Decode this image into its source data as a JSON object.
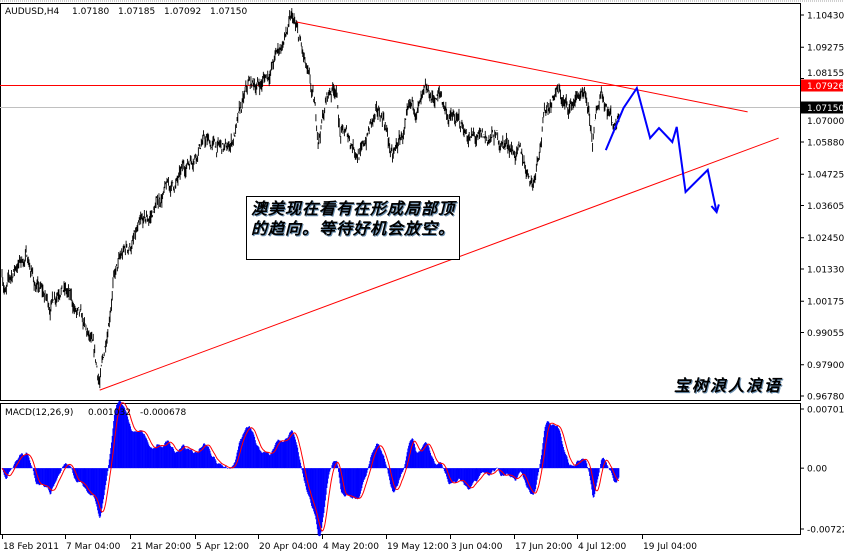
{
  "header": {
    "symbol": "AUDUSD,H4",
    "open": "1.07180",
    "high": "1.07185",
    "low": "1.07092",
    "close": "1.07150"
  },
  "annotation": {
    "text": "澳美现在看有在形成局部顶的趋向。等待好机会放空。"
  },
  "watermark": "宝树浪人浪语",
  "colors": {
    "price": "#000000",
    "trendline": "#ff0000",
    "projection": "#0000ff",
    "histogram": "#0000ff",
    "signal": "#ff0000",
    "current_price": "#c0c0c0"
  },
  "chart_data": [
    {
      "type": "line",
      "title": "AUDUSD,H4",
      "ylim": [
        0.9678,
        1.1043
      ],
      "y_ticks": [
        "1.10430",
        "1.09275",
        "1.08155",
        "1.07000",
        "1.05880",
        "1.04725",
        "1.03605",
        "1.02450",
        "1.01330",
        "1.00175",
        "0.99055",
        "0.97900",
        "0.96780"
      ],
      "x_ticks": [
        {
          "label": "18 Feb 2011",
          "date": "2011-02-18T00:00"
        },
        {
          "label": "7 Mar 04:00",
          "date": "2011-03-07T04:00"
        },
        {
          "label": "21 Mar 20:00",
          "date": "2011-03-21T20:00"
        },
        {
          "label": "5 Apr 12:00",
          "date": "2011-04-05T12:00"
        },
        {
          "label": "20 Apr 04:00",
          "date": "2011-04-20T04:00"
        },
        {
          "label": "4 May 20:00",
          "date": "2011-05-04T20:00"
        },
        {
          "label": "19 May 12:00",
          "date": "2011-05-19T12:00"
        },
        {
          "label": "3 Jun 04:00",
          "date": "2011-06-03T04:00"
        },
        {
          "label": "17 Jun 20:00",
          "date": "2011-06-17T20:00"
        },
        {
          "label": "4 Jul 12:00",
          "date": "2011-07-04T12:00"
        },
        {
          "label": "19 Jul 04:00",
          "date": "2011-07-19T04:00"
        }
      ],
      "price_path": [
        [
          "2011-02-18",
          1.013
        ],
        [
          "2011-02-19",
          1.005
        ],
        [
          "2011-02-22",
          1.015
        ],
        [
          "2011-02-25",
          1.018
        ],
        [
          "2011-02-27",
          1.008
        ],
        [
          "2011-03-03",
          1.0
        ],
        [
          "2011-03-06",
          1.01
        ],
        [
          "2011-03-10",
          0.996
        ],
        [
          "2011-03-13",
          0.985
        ],
        [
          "2011-03-15",
          0.972
        ],
        [
          "2011-03-16",
          0.982
        ],
        [
          "2011-03-18",
          1.01
        ],
        [
          "2011-03-21",
          1.02
        ],
        [
          "2011-03-26",
          1.03
        ],
        [
          "2011-03-29",
          1.04
        ],
        [
          "2011-04-02",
          1.045
        ],
        [
          "2011-04-04",
          1.052
        ],
        [
          "2011-04-07",
          1.06
        ],
        [
          "2011-04-09",
          1.058
        ],
        [
          "2011-04-13",
          1.055
        ],
        [
          "2011-04-15",
          1.063
        ],
        [
          "2011-04-18",
          1.078
        ],
        [
          "2011-04-21",
          1.08
        ],
        [
          "2011-04-23",
          1.085
        ],
        [
          "2011-04-26",
          1.095
        ],
        [
          "2011-04-28",
          1.102
        ],
        [
          "2011-04-30",
          1.092
        ],
        [
          "2011-05-03",
          1.07
        ],
        [
          "2011-05-04",
          1.06
        ],
        [
          "2011-05-06",
          1.075
        ],
        [
          "2011-05-08",
          1.08
        ],
        [
          "2011-05-09",
          1.062
        ],
        [
          "2011-05-11",
          1.06
        ],
        [
          "2011-05-14",
          1.055
        ],
        [
          "2011-05-16",
          1.065
        ],
        [
          "2011-05-19",
          1.068
        ],
        [
          "2011-05-21",
          1.052
        ],
        [
          "2011-05-23",
          1.06
        ],
        [
          "2011-05-26",
          1.07
        ],
        [
          "2011-05-29",
          1.073
        ],
        [
          "2011-06-01",
          1.075
        ],
        [
          "2011-06-03",
          1.068
        ],
        [
          "2011-06-07",
          1.062
        ],
        [
          "2011-06-10",
          1.058
        ],
        [
          "2011-06-13",
          1.06
        ],
        [
          "2011-06-17",
          1.058
        ],
        [
          "2011-06-20",
          1.052
        ],
        [
          "2011-06-23",
          1.045
        ],
        [
          "2011-06-24",
          1.055
        ],
        [
          "2011-06-26",
          1.07
        ],
        [
          "2011-06-29",
          1.078
        ],
        [
          "2011-07-02",
          1.07
        ],
        [
          "2011-07-05",
          1.076
        ],
        [
          "2011-07-07",
          1.068
        ],
        [
          "2011-07-08",
          1.058
        ],
        [
          "2011-07-10",
          1.078
        ],
        [
          "2011-07-13",
          1.065
        ],
        [
          "2011-07-14",
          1.0715
        ]
      ],
      "horizontal_lines": [
        {
          "price": 1.07926,
          "label": "1.07926",
          "color": "#ff0000"
        },
        {
          "price": 1.0715,
          "label": "1.07150",
          "color": "#c0c0c0"
        }
      ],
      "trendlines": [
        {
          "from": [
            "2011-04-29",
            1.1018
          ],
          "to": [
            "2011-08-12",
            1.0696
          ]
        },
        {
          "from": [
            "2011-03-15",
            0.9699
          ],
          "to": [
            "2011-08-19",
            1.0602
          ]
        }
      ],
      "projection": [
        [
          "2011-07-11",
          1.0559
        ],
        [
          "2011-07-15",
          1.071
        ],
        [
          "2011-07-18",
          1.0781
        ],
        [
          "2011-07-21",
          1.0602
        ],
        [
          "2011-07-23",
          1.0638
        ],
        [
          "2011-07-26",
          1.0588
        ],
        [
          "2011-07-27",
          1.0642
        ],
        [
          "2011-07-29",
          1.0409
        ],
        [
          "2011-08-03",
          1.0488
        ],
        [
          "2011-08-05",
          1.0337
        ]
      ]
    },
    {
      "type": "bar",
      "title": "MACD(12,26,9)",
      "macd_value": "0.001032",
      "signal_value": "-0.000678",
      "ylim": [
        -0.00722,
        0.007019
      ],
      "y_ticks": [
        "0.007019",
        "0.00",
        "-0.00722"
      ],
      "series": [
        {
          "name": "MACD",
          "style": "histogram"
        },
        {
          "name": "Signal",
          "style": "line"
        }
      ]
    }
  ]
}
